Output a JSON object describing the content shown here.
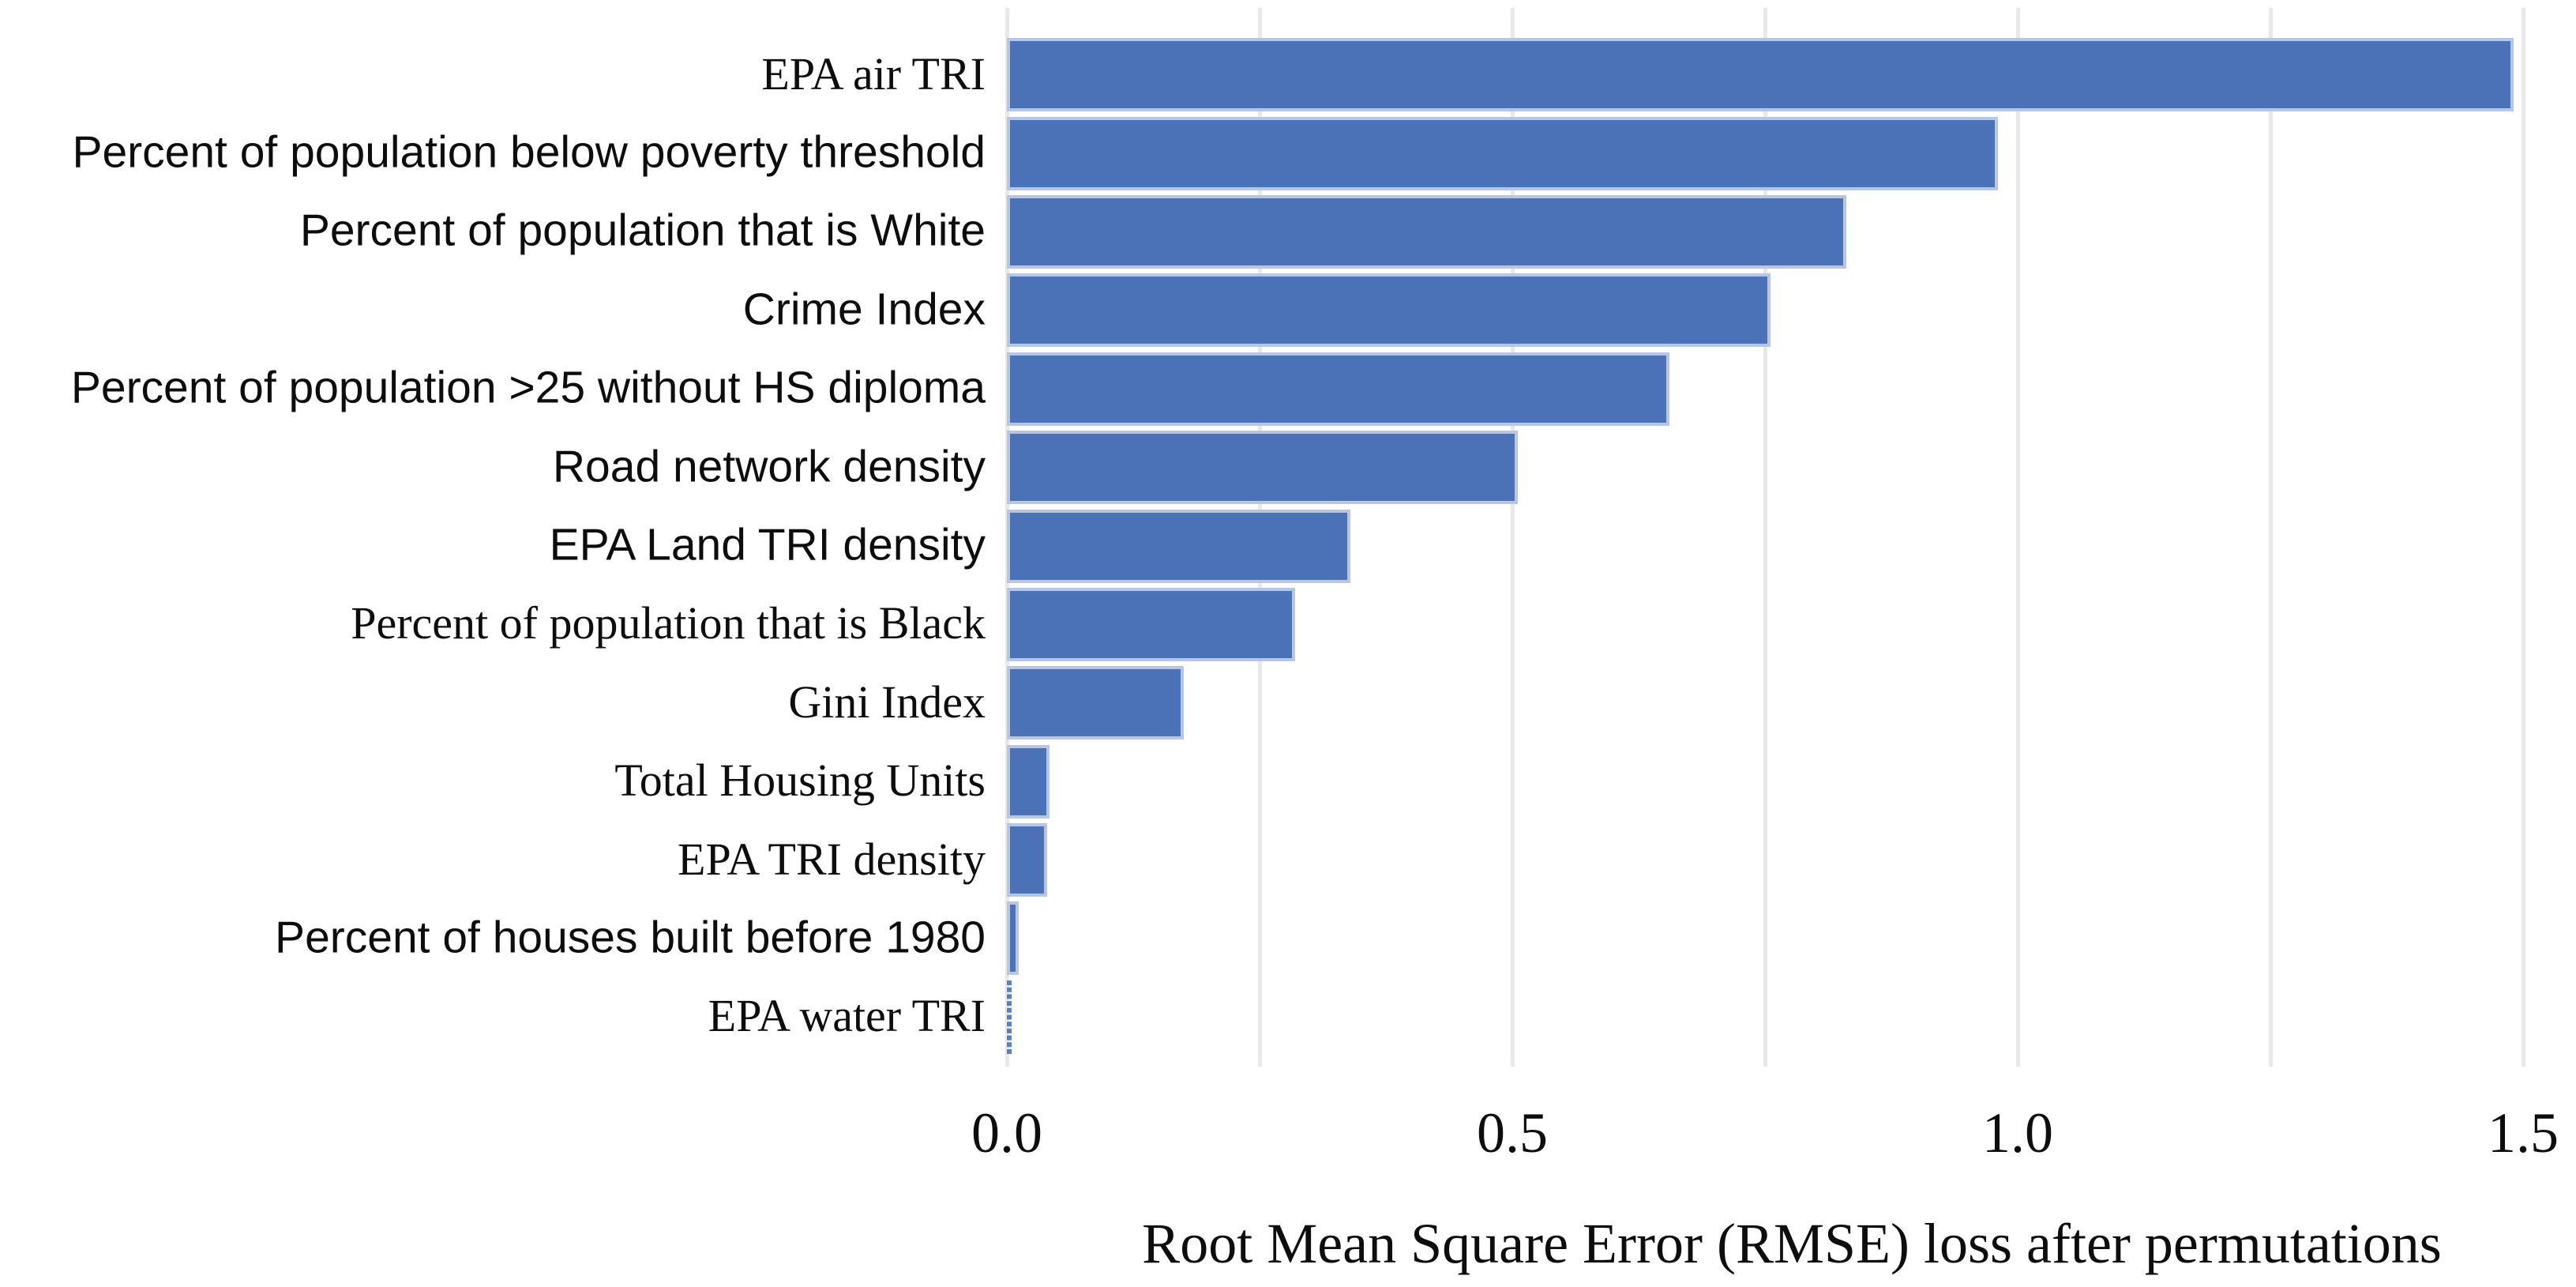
{
  "chart_data": {
    "type": "bar",
    "orientation": "horizontal",
    "title": "",
    "xlabel": "Root Mean Square Error (RMSE) loss after permutations",
    "ylabel": "",
    "categories": [
      "EPA air TRI",
      "Percent of population below poverty threshold",
      "Percent of population that is White",
      "Crime Index",
      "Percent of population >25 without HS diploma",
      "Road network density",
      "EPA Land TRI density",
      "Percent of population that is Black",
      "Gini Index",
      "Total Housing Units",
      "EPA TRI density",
      "Percent of houses built before 1980",
      "EPA water TRI"
    ],
    "values": [
      1.49,
      0.98,
      0.83,
      0.755,
      0.655,
      0.505,
      0.34,
      0.285,
      0.175,
      0.042,
      0.04,
      0.012,
      0.004
    ],
    "label_fonts": [
      "serif",
      "sans",
      "sans",
      "sans",
      "sans",
      "sans",
      "sans",
      "serif",
      "serif",
      "serif",
      "serif",
      "sans",
      "serif"
    ],
    "x_ticks": [
      0.0,
      0.5,
      1.0,
      1.5
    ],
    "x_tick_labels": [
      "0.0",
      "0.5",
      "1.0",
      "1.5"
    ],
    "xlim": [
      0,
      1.552
    ],
    "gridline_interval": 0.25,
    "grid": "vertical-light-gray",
    "legend": "none",
    "sort_order": "descending",
    "colors": {
      "bar_fill": "#4b72b7",
      "bar_border": "#b6c6e4",
      "gridline": "#e8e8e8",
      "text": "#0d0d0d",
      "background": "#ffffff"
    }
  }
}
